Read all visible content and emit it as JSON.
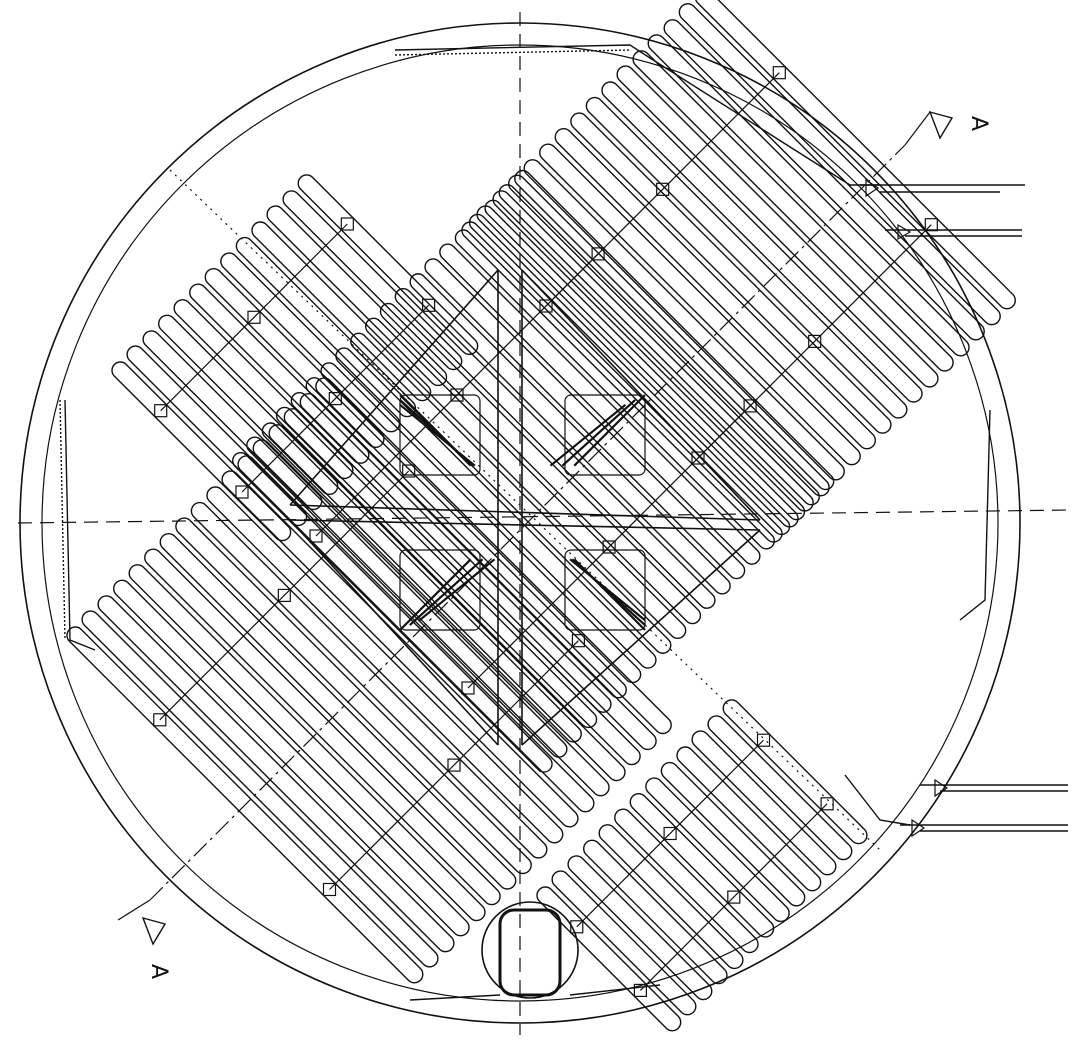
{
  "drawing": {
    "type": "technical plan view",
    "section_marks": [
      {
        "label": "A",
        "location": "top-right",
        "arrow": "outline-triangle"
      },
      {
        "label": "A",
        "location": "bottom-left",
        "arrow": "outline-triangle"
      }
    ],
    "coil_banks": [
      {
        "id": "top-left",
        "loops": 13
      },
      {
        "id": "top-right",
        "loops": 16
      },
      {
        "id": "center",
        "loops": 20
      },
      {
        "id": "bottom-left",
        "loops": 17
      },
      {
        "id": "bottom-right",
        "loops": 13
      }
    ],
    "inner_heat_exchangers": 4,
    "centerlines": [
      "vertical",
      "horizontal",
      "diagonal"
    ],
    "inlet_pipes": 2,
    "outlet_pipes": 2,
    "colors": {
      "line": "#111111",
      "background": "#ffffff"
    }
  }
}
